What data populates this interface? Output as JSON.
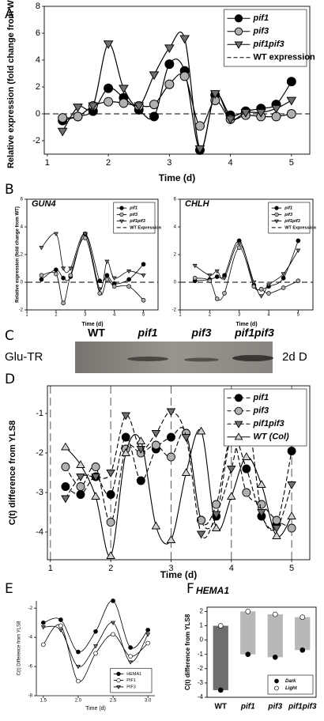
{
  "chart_data": [
    {
      "type": "line",
      "panel": "A",
      "ylabel": "Relative expression (fold change from WT)",
      "xlabel": "Time (d)",
      "x": [
        1.25,
        1.5,
        1.75,
        2,
        2.25,
        2.5,
        2.75,
        3,
        3.25,
        3.5,
        3.75,
        4,
        4.25,
        4.5,
        4.75,
        5
      ],
      "xlim": [
        0.95,
        5.3
      ],
      "xticks": [
        1,
        2,
        3,
        4,
        5
      ],
      "ylim": [
        -3,
        8
      ],
      "yticks": [
        -2,
        0,
        2,
        4,
        6,
        8
      ],
      "legend": "upper right",
      "series": [
        {
          "name": "pif1",
          "color": "#000000",
          "marker": "circle",
          "values": [
            -0.5,
            -0.2,
            0.2,
            1.9,
            1.2,
            0.3,
            -0.2,
            3.7,
            3.2,
            -2.7,
            1.4,
            -0.1,
            0.2,
            0.4,
            0.7,
            2.4
          ]
        },
        {
          "name": "pif3",
          "color": "#b0b0b0",
          "marker": "circle",
          "values": [
            -0.3,
            -0.2,
            0.6,
            0.9,
            0.8,
            0.6,
            0.7,
            2.2,
            2.8,
            -0.9,
            1.0,
            -0.4,
            -0.1,
            -0.2,
            -0.2,
            0.0
          ]
        },
        {
          "name": "pif1pif3",
          "color": "#707070",
          "marker": "triangle-down",
          "values": [
            -1.3,
            0.5,
            0.6,
            5.2,
            1.9,
            0.6,
            2.9,
            4.9,
            5.6,
            -2.6,
            1.5,
            -0.4,
            0.1,
            0.1,
            0.4,
            1.0
          ]
        }
      ],
      "reference_line": {
        "name": "WT expression",
        "value": 0
      }
    },
    {
      "type": "line",
      "panel": "B",
      "title": "GUN4",
      "ylabel": "Relative expression (fold change from WT)",
      "xlabel": "Time (d)",
      "x": [
        1.5,
        2,
        2.25,
        2.5,
        3,
        3.5,
        3.75,
        4,
        4.5,
        5
      ],
      "xlim": [
        1,
        5.5
      ],
      "xticks": [
        1,
        2,
        3,
        4,
        5
      ],
      "ylim": [
        -2,
        6
      ],
      "yticks": [
        -2,
        0,
        2,
        4,
        6
      ],
      "legend": "upper right",
      "series": [
        {
          "name": "pif1",
          "color": "#000000",
          "marker": "circle",
          "values": [
            0.2,
            0.9,
            0.3,
            0.4,
            3.5,
            0.1,
            0.5,
            -0.1,
            0.2,
            1.3
          ]
        },
        {
          "name": "pif3",
          "color": "#b0b0b0",
          "marker": "circle",
          "values": [
            0.5,
            0.6,
            -1.5,
            0.5,
            3.2,
            -0.8,
            0.2,
            -0.3,
            -0.3,
            -1.3
          ]
        },
        {
          "name": "pif1pif3",
          "color": "#707070",
          "marker": "triangle-down",
          "values": [
            2.5,
            3.5,
            1.0,
            1.0,
            3.5,
            -0.5,
            1.5,
            0.3,
            0.8,
            0.5
          ]
        }
      ],
      "reference_line": {
        "name": "WT Expression",
        "value": 0
      }
    },
    {
      "type": "line",
      "panel": "",
      "title": "CHLH",
      "xlabel": "Time (d)",
      "x": [
        1.5,
        2,
        2.25,
        2.5,
        3,
        3.5,
        3.75,
        4,
        4.5,
        5
      ],
      "xlim": [
        1,
        5.5
      ],
      "xticks": [
        1,
        2,
        3,
        4,
        5
      ],
      "ylim": [
        -2,
        6
      ],
      "yticks": [
        -2,
        0,
        2,
        4,
        6
      ],
      "legend": "upper right",
      "series": [
        {
          "name": "pif1",
          "color": "#000000",
          "marker": "circle",
          "values": [
            0.1,
            0.2,
            0.4,
            0.5,
            3.0,
            -0.2,
            -0.5,
            -0.3,
            0.3,
            3.0
          ]
        },
        {
          "name": "pif3",
          "color": "#b0b0b0",
          "marker": "circle",
          "values": [
            0.3,
            0.1,
            -1.2,
            -0.8,
            2.5,
            -0.3,
            -0.5,
            -0.8,
            -0.4,
            0.1
          ]
        },
        {
          "name": "pif1pif3",
          "color": "#707070",
          "marker": "triangle-down",
          "values": [
            1.2,
            0.5,
            0.8,
            0.3,
            2.8,
            0.0,
            -1.0,
            -0.2,
            0.6,
            2.3
          ]
        }
      ],
      "reference_line": {
        "name": "WT Expression",
        "value": 0
      }
    },
    {
      "type": "line",
      "panel": "D",
      "ylabel": "C(t) difference from YLS8",
      "xlabel": "Time (d)",
      "x": [
        1.25,
        1.5,
        1.75,
        2,
        2.25,
        2.5,
        2.75,
        3,
        3.25,
        3.5,
        3.75,
        4,
        4.25,
        4.5,
        4.75,
        5
      ],
      "xlim": [
        0.95,
        5.3
      ],
      "xticks": [
        1,
        2,
        3,
        4,
        5
      ],
      "ylim": [
        -4.7,
        -0.3
      ],
      "yticks": [
        -4,
        -3,
        -2,
        -1
      ],
      "legend": "upper right",
      "xgrid": true,
      "series": [
        {
          "name": "pif1",
          "color": "#000000",
          "marker": "circle",
          "dashed": true,
          "values": [
            -2.85,
            -3.05,
            -2.6,
            -3.05,
            -1.6,
            -2.7,
            -1.9,
            -1.6,
            -1.5,
            -3.7,
            -3.6,
            -1.6,
            -2.4,
            -3.6,
            -3.8,
            -1.95
          ]
        },
        {
          "name": "pif3",
          "color": "#b0b0b0",
          "marker": "circle",
          "dashed": true,
          "values": [
            -2.35,
            -2.85,
            -2.35,
            -3.75,
            -1.9,
            -2.0,
            -1.8,
            -2.1,
            -1.5,
            -3.7,
            -3.3,
            -1.6,
            -3.0,
            -3.3,
            -3.7,
            -3.9
          ]
        },
        {
          "name": "pif1pif3",
          "color": "#707070",
          "marker": "triangle-down",
          "dashed": true,
          "values": [
            -3.15,
            -2.6,
            -2.6,
            -2.5,
            -1.05,
            -1.9,
            -1.5,
            -0.95,
            -1.6,
            -4.05,
            -3.55,
            -2.4,
            -1.0,
            -3.5,
            -3.9,
            -2.8
          ]
        },
        {
          "name": "WT (Col)",
          "color": "#d0d0d0",
          "marker": "triangle-up",
          "values": [
            -1.85,
            -2.3,
            -3.1,
            -4.6,
            -2.0,
            -1.7,
            -3.85,
            -4.2,
            -2.5,
            -1.45,
            -3.9,
            -3.1,
            -2.1,
            -2.8,
            -4.1,
            -3.6
          ]
        }
      ]
    },
    {
      "type": "line",
      "panel": "E",
      "ylabel": "C(t) Difference from YLS8",
      "xlabel": "Time (d)",
      "x": [
        1.5,
        1.75,
        2,
        2.25,
        2.5,
        2.75,
        3
      ],
      "xlim": [
        1.4,
        3.1
      ],
      "xticks": [
        1.5,
        {
          "value": 2,
          "label": "2.0"
        },
        2.5,
        {
          "value": 3,
          "label": "3.0"
        }
      ],
      "ylim": [
        -8,
        -1.5
      ],
      "yticks": [
        -8,
        -6,
        -4,
        -2
      ],
      "legend": "lower right",
      "series": [
        {
          "name": "HEMA1",
          "color": "#000000",
          "marker": "circle",
          "values": [
            -3.0,
            -2.8,
            -5.0,
            -3.6,
            -1.5,
            -4.7,
            -3.5
          ]
        },
        {
          "name": "PIF1",
          "color": "#ffffff",
          "marker": "circle",
          "values": [
            -4.5,
            -3.2,
            -7.0,
            -5.1,
            -3.8,
            -5.3,
            -4.4
          ]
        },
        {
          "name": "PIF3",
          "color": "#707070",
          "marker": "triangle-down",
          "values": [
            -3.3,
            -3.5,
            -6.0,
            -4.6,
            -3.0,
            -5.7,
            -3.8
          ]
        }
      ]
    },
    {
      "type": "range-bar",
      "panel": "F",
      "title": "HEMA1",
      "ylabel": "C(t) difference from YLS8",
      "categories": [
        "WT",
        "pif1",
        "pif3",
        "pif1pif3"
      ],
      "bar_colors": [
        "#6e6e6e",
        "#b8b8b8",
        "#b8b8b8",
        "#b8b8b8"
      ],
      "ylim": [
        -4,
        2.3
      ],
      "yticks": [
        -4,
        -3,
        -2,
        -1,
        0,
        1,
        2
      ],
      "legend": "lower right",
      "series": [
        {
          "name": "Dark",
          "color": "#000000",
          "marker": "circle",
          "values": [
            -3.5,
            -1.0,
            -1.2,
            -0.7
          ]
        },
        {
          "name": "Light",
          "color": "#ffffff",
          "marker": "circle",
          "values": [
            1.0,
            2.0,
            1.8,
            1.6
          ]
        }
      ]
    }
  ],
  "blot": {
    "panel": "C",
    "protein": "Glu-TR",
    "condition": "2d D",
    "lanes": [
      "WT",
      "pif1",
      "pif3",
      "pif1pif3"
    ]
  }
}
